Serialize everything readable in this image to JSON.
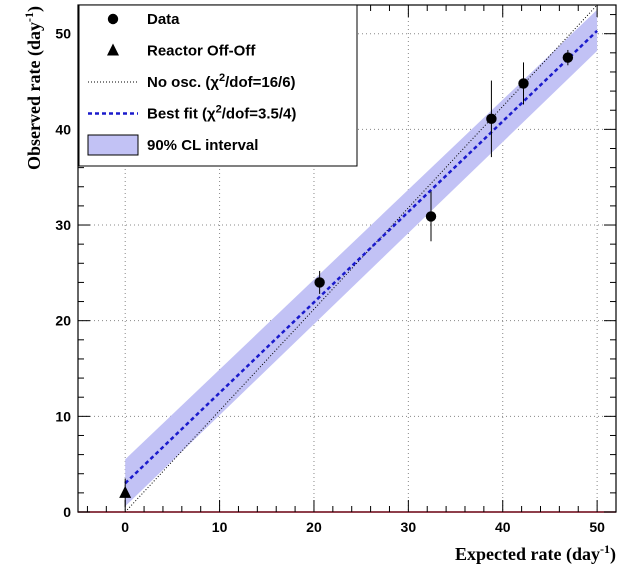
{
  "chart_data": {
    "type": "scatter",
    "xlabel": "Expected rate (day",
    "xlabel_sup": "-1",
    "xlabel_end": ")",
    "ylabel": "Observed rate (day",
    "ylabel_sup": "-1",
    "ylabel_end": ")",
    "xlim": [
      -5,
      52
    ],
    "ylim": [
      0,
      53
    ],
    "xticks": [
      0,
      10,
      20,
      30,
      40,
      50
    ],
    "yticks": [
      0,
      10,
      20,
      30,
      40,
      50
    ],
    "grid": true,
    "legend_position": "top-left",
    "series": [
      {
        "name": "Data",
        "marker": "circle",
        "color": "#000000",
        "points": [
          {
            "x": 20.6,
            "y": 24.0,
            "err_lo": 1.2,
            "err_hi": 1.2
          },
          {
            "x": 32.4,
            "y": 30.9,
            "err_lo": 2.6,
            "err_hi": 2.6
          },
          {
            "x": 38.8,
            "y": 41.1,
            "err_lo": 4.0,
            "err_hi": 4.0
          },
          {
            "x": 42.2,
            "y": 44.8,
            "err_lo": 2.2,
            "err_hi": 2.2
          },
          {
            "x": 46.9,
            "y": 47.5,
            "err_lo": 0.8,
            "err_hi": 0.8
          }
        ]
      },
      {
        "name": "Reactor Off-Off",
        "marker": "triangle",
        "color": "#000000",
        "points": [
          {
            "x": 0.0,
            "y": 2.0,
            "err_lo": 1.5,
            "err_hi": 1.5
          }
        ]
      },
      {
        "name": "No osc. (χ²/dof=16/6)",
        "style": "dotted-line",
        "color": "#000000",
        "line": {
          "x0": 0,
          "y0": 0,
          "x1": 50,
          "y1": 53
        }
      },
      {
        "name": "Best fit (χ²/dof=3.5/4)",
        "style": "dashed-line",
        "color": "#1a1acc",
        "line": {
          "x0": 0,
          "y0": 3.0,
          "x1": 50,
          "y1": 50.3
        }
      },
      {
        "name": "90% CL interval",
        "style": "band",
        "color": "#c2c2f5",
        "band": {
          "x0": 0,
          "x1": 50,
          "lower0": 0.6,
          "upper0": 5.5,
          "lower1": 48.2,
          "upper1": 52.5
        }
      }
    ],
    "legend": [
      {
        "label": "Data",
        "symbol": "circle"
      },
      {
        "label": "Reactor Off-Off",
        "symbol": "triangle"
      },
      {
        "label": "No osc. (χ",
        "sup": "2",
        "label_end": "/dof=16/6)",
        "symbol": "dotted-line"
      },
      {
        "label": "Best fit (χ",
        "sup": "2",
        "label_end": "/dof=3.5/4)",
        "symbol": "dashed-line"
      },
      {
        "label": "90% CL interval",
        "symbol": "band"
      }
    ]
  }
}
